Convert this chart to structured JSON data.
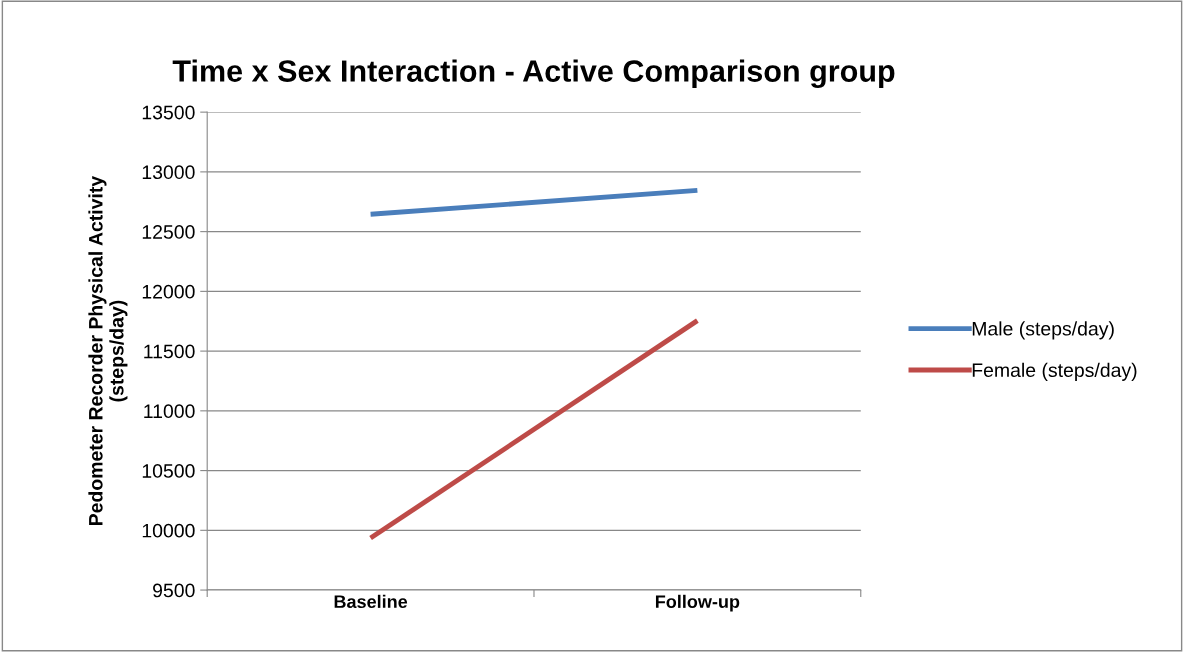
{
  "chart_data": {
    "type": "line",
    "title": "Time x Sex Interaction - Active Comparison group",
    "ylabel": "Pedometer Recorder Physical Activity\n(steps/day)",
    "categories": [
      "Baseline",
      "Follow-up"
    ],
    "series": [
      {
        "name": "Male (steps/day)",
        "color": "#4a7ebb",
        "values": [
          12645,
          12845
        ]
      },
      {
        "name": "Female (steps/day)",
        "color": "#be4b48",
        "values": [
          9935,
          11755
        ]
      }
    ],
    "ylim": [
      9500,
      13500
    ],
    "yticks": [
      9500,
      10000,
      10500,
      11000,
      11500,
      12000,
      12500,
      13000,
      13500
    ],
    "grid": "y",
    "legend": "right",
    "marker": "none",
    "line_style": "solid"
  }
}
